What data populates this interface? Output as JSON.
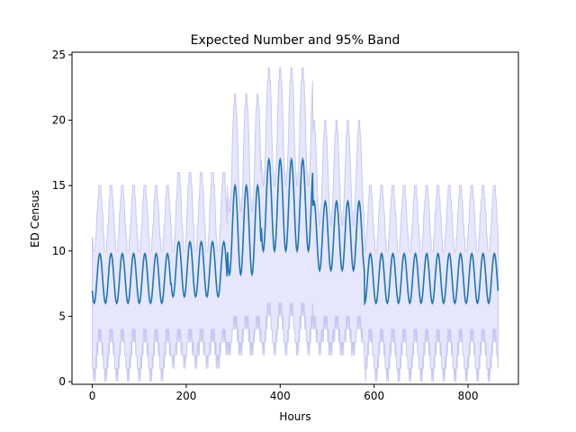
{
  "chart_data": {
    "type": "line",
    "title": "Expected Number and 95% Band",
    "xlabel": "Hours",
    "ylabel": "ED Census",
    "xlim": [
      -43.2,
      907.2
    ],
    "ylim": [
      -0.2,
      25.2
    ],
    "xticks": [
      0,
      200,
      400,
      600,
      800
    ],
    "yticks": [
      0,
      5,
      10,
      15,
      20,
      25
    ],
    "grid": false,
    "legend": "none",
    "colors": {
      "line": "#1f77b4",
      "band_fill": "#e6e6fc",
      "band_edge": "#c8c8f4"
    },
    "x_range": [
      0,
      864
    ],
    "day_period_hours": 24,
    "segments": [
      {
        "x_start": 0,
        "x_end": 168,
        "mean_min": 6.0,
        "mean_max": 9.8,
        "upper_max": 15,
        "upper_min": 10,
        "lower_max": 4,
        "lower_min": 1
      },
      {
        "x_start": 168,
        "x_end": 288,
        "mean_min": 6.5,
        "mean_max": 10.7,
        "upper_max": 16,
        "upper_min": 10,
        "lower_max": 4,
        "lower_min": 2
      },
      {
        "x_start": 288,
        "x_end": 360,
        "mean_min": 8.2,
        "mean_max": 15.0,
        "upper_max": 22,
        "upper_min": 13,
        "lower_max": 5,
        "lower_min": 3
      },
      {
        "x_start": 360,
        "x_end": 470,
        "mean_min": 10.0,
        "mean_max": 17.0,
        "upper_max": 24,
        "upper_min": 15,
        "lower_max": 6,
        "lower_min": 3
      },
      {
        "x_start": 470,
        "x_end": 580,
        "mean_min": 8.5,
        "mean_max": 13.8,
        "upper_max": 20,
        "upper_min": 12,
        "lower_max": 5,
        "lower_min": 3
      },
      {
        "x_start": 580,
        "x_end": 864,
        "mean_min": 6.0,
        "mean_max": 9.8,
        "upper_max": 15,
        "upper_min": 10,
        "lower_max": 4,
        "lower_min": 1
      }
    ]
  }
}
